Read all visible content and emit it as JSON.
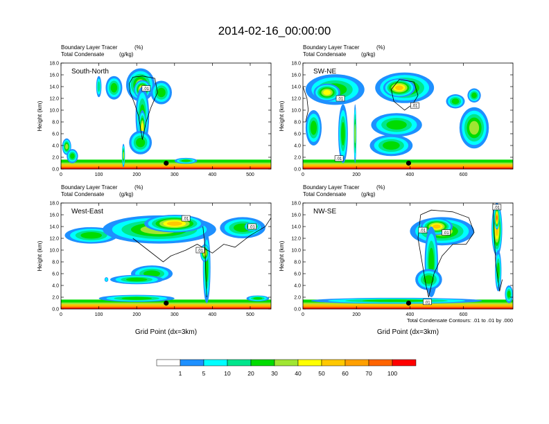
{
  "figure": {
    "title": "2014-02-16_00:00:00",
    "contour_note": "Total Condensate Contours: .01 to .01 by .000"
  },
  "chart_data": {
    "type": "heatmap",
    "panels": [
      {
        "id": "south-north",
        "label": "South-North",
        "subtitle_line1": "Boundary Layer Tracer",
        "subtitle_unit1": "(%)",
        "subtitle_line2": "Total Condensate",
        "subtitle_unit2": "(g/kg)",
        "ylabel": "Height (km)",
        "xlabel": "",
        "xlim": [
          0,
          555
        ],
        "ylim": [
          0,
          18
        ],
        "xticks": [
          0,
          100,
          200,
          300,
          400,
          500
        ],
        "yticks": [
          "0.0",
          "2.0",
          "4.0",
          "6.0",
          "8.0",
          "10.0",
          "12.0",
          "14.0",
          "16.0",
          "18.0"
        ],
        "marker": {
          "x": 278,
          "y": 1.0
        },
        "contour_labels": [
          {
            "x": 225,
            "y": 13.7,
            "text": ".01"
          }
        ],
        "blobs": [
          {
            "x": 140,
            "y": 13.8,
            "rx": 22,
            "ry": 2.0,
            "v": 20
          },
          {
            "x": 210,
            "y": 14.3,
            "rx": 38,
            "ry": 2.8,
            "v": 30
          },
          {
            "x": 215,
            "y": 13.5,
            "rx": 22,
            "ry": 1.6,
            "v": 50
          },
          {
            "x": 265,
            "y": 13.0,
            "rx": 28,
            "ry": 2.0,
            "v": 20
          },
          {
            "x": 100,
            "y": 14.0,
            "rx": 7,
            "ry": 1.8,
            "v": 10
          },
          {
            "x": 215,
            "y": 9.0,
            "rx": 18,
            "ry": 5.0,
            "v": 20
          },
          {
            "x": 215,
            "y": 7.0,
            "rx": 10,
            "ry": 3.0,
            "v": 40
          },
          {
            "x": 210,
            "y": 4.5,
            "rx": 30,
            "ry": 2.0,
            "v": 20
          },
          {
            "x": 15,
            "y": 3.8,
            "rx": 12,
            "ry": 1.4,
            "v": 30
          },
          {
            "x": 30,
            "y": 2.2,
            "rx": 15,
            "ry": 1.2,
            "v": 20
          },
          {
            "x": 165,
            "y": 2.3,
            "rx": 4,
            "ry": 2.0,
            "v": 30
          },
          {
            "x": 330,
            "y": 1.4,
            "rx": 30,
            "ry": 0.5,
            "v": 20
          }
        ],
        "contour_paths": [
          {
            "points": [
              [
                180,
                14.5
              ],
              [
                190,
                15.6
              ],
              [
                215,
                15.8
              ],
              [
                248,
                15.4
              ],
              [
                255,
                13
              ],
              [
                238,
                10.5
              ],
              [
                225,
                8
              ],
              [
                215,
                5
              ],
              [
                205,
                9
              ],
              [
                195,
                11
              ],
              [
                183,
                13
              ],
              [
                180,
                14.5
              ]
            ]
          }
        ]
      },
      {
        "id": "sw-ne",
        "label": "SW-NE",
        "subtitle_line1": "Boundary Layer Tracer",
        "subtitle_unit1": "(%)",
        "subtitle_line2": "Total Condensate",
        "subtitle_unit2": "(g/kg)",
        "ylabel": "Height (km)",
        "xlabel": "",
        "xlim": [
          0,
          785
        ],
        "ylim": [
          0,
          18
        ],
        "xticks": [
          0,
          200,
          400,
          600
        ],
        "yticks": [
          "0.0",
          "2.0",
          "4.0",
          "6.0",
          "8.0",
          "10.0",
          "12.0",
          "14.0",
          "16.0",
          "18.0"
        ],
        "marker": {
          "x": 395,
          "y": 1.0
        },
        "contour_labels": [
          {
            "x": 140,
            "y": 12.0,
            "text": ".01"
          },
          {
            "x": 418,
            "y": 10.8,
            "text": ".01"
          },
          {
            "x": 135,
            "y": 1.8,
            "text": ".01"
          }
        ],
        "blobs": [
          {
            "x": 120,
            "y": 13.5,
            "rx": 110,
            "ry": 2.6,
            "v": 20
          },
          {
            "x": 90,
            "y": 13.0,
            "rx": 50,
            "ry": 1.5,
            "v": 40
          },
          {
            "x": 380,
            "y": 13.8,
            "rx": 110,
            "ry": 2.6,
            "v": 30
          },
          {
            "x": 360,
            "y": 13.8,
            "rx": 60,
            "ry": 1.6,
            "v": 50
          },
          {
            "x": 570,
            "y": 11.5,
            "rx": 35,
            "ry": 1.2,
            "v": 20
          },
          {
            "x": 640,
            "y": 12.5,
            "rx": 25,
            "ry": 1.2,
            "v": 20
          },
          {
            "x": 350,
            "y": 7.5,
            "rx": 95,
            "ry": 2.0,
            "v": 20
          },
          {
            "x": 330,
            "y": 4.0,
            "rx": 80,
            "ry": 1.8,
            "v": 20
          },
          {
            "x": 640,
            "y": 7.0,
            "rx": 55,
            "ry": 3.5,
            "v": 30
          },
          {
            "x": 150,
            "y": 6.0,
            "rx": 18,
            "ry": 5.0,
            "v": 20
          },
          {
            "x": 195,
            "y": 6.0,
            "rx": 5,
            "ry": 5.0,
            "v": 30
          },
          {
            "x": 40,
            "y": 7.0,
            "rx": 30,
            "ry": 3.0,
            "v": 20
          }
        ],
        "contour_paths": [
          {
            "points": [
              [
                330,
                13.5
              ],
              [
                360,
                15.2
              ],
              [
                415,
                14.8
              ],
              [
                430,
                12.5
              ],
              [
                410,
                11
              ],
              [
                380,
                10
              ],
              [
                340,
                11.5
              ],
              [
                330,
                13.5
              ]
            ]
          },
          {
            "points": [
              [
                0,
                14
              ],
              [
                15,
                12
              ],
              [
                20,
                10
              ],
              [
                10,
                8
              ]
            ]
          }
        ]
      },
      {
        "id": "west-east",
        "label": "West-East",
        "subtitle_line1": "Boundary Layer Tracer",
        "subtitle_unit1": "(%)",
        "subtitle_line2": "Total Condensate",
        "subtitle_unit2": "(g/kg)",
        "ylabel": "Height (km)",
        "xlabel": "Grid Point (dx=3km)",
        "xlim": [
          0,
          555
        ],
        "ylim": [
          0,
          18
        ],
        "xticks": [
          0,
          100,
          200,
          300,
          400,
          500
        ],
        "yticks": [
          "0.0",
          "2.0",
          "4.0",
          "6.0",
          "8.0",
          "10.0",
          "12.0",
          "14.0",
          "16.0",
          "18.0"
        ],
        "marker": {
          "x": 278,
          "y": 1.0
        },
        "contour_labels": [
          {
            "x": 330,
            "y": 15.4,
            "text": ".01"
          },
          {
            "x": 505,
            "y": 14.0,
            "text": ".01"
          },
          {
            "x": 368,
            "y": 10.0,
            "text": ".01"
          }
        ],
        "blobs": [
          {
            "x": 80,
            "y": 12.5,
            "rx": 70,
            "ry": 1.4,
            "v": 20
          },
          {
            "x": 260,
            "y": 13.5,
            "rx": 150,
            "ry": 2.4,
            "v": 30
          },
          {
            "x": 300,
            "y": 14.5,
            "rx": 80,
            "ry": 1.5,
            "v": 50
          },
          {
            "x": 480,
            "y": 13.8,
            "rx": 60,
            "ry": 1.8,
            "v": 20
          },
          {
            "x": 505,
            "y": 14.0,
            "rx": 20,
            "ry": 0.8,
            "v": 50
          },
          {
            "x": 385,
            "y": 7.0,
            "rx": 10,
            "ry": 6.0,
            "v": 20
          },
          {
            "x": 380,
            "y": 9.5,
            "rx": 12,
            "ry": 1.5,
            "v": 40
          },
          {
            "x": 240,
            "y": 6.0,
            "rx": 55,
            "ry": 1.4,
            "v": 20
          },
          {
            "x": 200,
            "y": 5.0,
            "rx": 70,
            "ry": 0.8,
            "v": 20
          },
          {
            "x": 200,
            "y": 1.8,
            "rx": 100,
            "ry": 0.6,
            "v": 20
          },
          {
            "x": 120,
            "y": 5.0,
            "rx": 5,
            "ry": 0.4,
            "v": 5
          },
          {
            "x": 520,
            "y": 1.8,
            "rx": 30,
            "ry": 0.5,
            "v": 20
          }
        ],
        "contour_paths": [
          {
            "points": [
              [
                190,
                12
              ],
              [
                230,
                10
              ],
              [
                270,
                8
              ],
              [
                290,
                9
              ],
              [
                330,
                10
              ],
              [
                360,
                11
              ],
              [
                400,
                9.5
              ],
              [
                430,
                11
              ],
              [
                460,
                10.5
              ],
              [
                500,
                12.5
              ],
              [
                540,
                14
              ],
              [
                555,
                15.5
              ]
            ]
          },
          {
            "points": [
              [
                385,
                2
              ],
              [
                382,
                7
              ],
              [
                380,
                11
              ],
              [
                375,
                14
              ]
            ]
          }
        ]
      },
      {
        "id": "nw-se",
        "label": "NW-SE",
        "subtitle_line1": "Boundary Layer Tracer",
        "subtitle_unit1": "(%)",
        "subtitle_line2": "Total Condensate",
        "subtitle_unit2": "(g/kg)",
        "ylabel": "Height (km)",
        "xlabel": "Grid Point (dx=3km)",
        "xlim": [
          0,
          785
        ],
        "ylim": [
          0,
          18
        ],
        "xticks": [
          0,
          200,
          400,
          600
        ],
        "yticks": [
          "0.0",
          "2.0",
          "4.0",
          "6.0",
          "8.0",
          "10.0",
          "12.0",
          "14.0",
          "16.0",
          "18.0"
        ],
        "marker": {
          "x": 395,
          "y": 1.0
        },
        "contour_labels": [
          {
            "x": 448,
            "y": 13.4,
            "text": ".01"
          },
          {
            "x": 535,
            "y": 13.0,
            "text": ".01"
          },
          {
            "x": 725,
            "y": 17.3,
            "text": ".01"
          },
          {
            "x": 465,
            "y": 1.2,
            "text": ".01"
          }
        ],
        "blobs": [
          {
            "x": 520,
            "y": 13.2,
            "rx": 120,
            "ry": 2.4,
            "v": 30
          },
          {
            "x": 500,
            "y": 14.0,
            "rx": 60,
            "ry": 1.4,
            "v": 50
          },
          {
            "x": 480,
            "y": 8.0,
            "rx": 25,
            "ry": 6.0,
            "v": 20
          },
          {
            "x": 470,
            "y": 5.0,
            "rx": 50,
            "ry": 1.8,
            "v": 20
          },
          {
            "x": 725,
            "y": 13.5,
            "rx": 20,
            "ry": 4.5,
            "v": 50
          },
          {
            "x": 725,
            "y": 15.5,
            "rx": 10,
            "ry": 2.0,
            "v": 70
          },
          {
            "x": 730,
            "y": 6.5,
            "rx": 12,
            "ry": 3.5,
            "v": 20
          },
          {
            "x": 350,
            "y": 1.4,
            "rx": 320,
            "ry": 0.5,
            "v": 20
          },
          {
            "x": 770,
            "y": 2.5,
            "rx": 15,
            "ry": 1.5,
            "v": 20
          }
        ],
        "contour_paths": [
          {
            "points": [
              [
                440,
                16
              ],
              [
                480,
                16.8
              ],
              [
                560,
                16.5
              ],
              [
                620,
                15.5
              ],
              [
                640,
                13
              ],
              [
                610,
                11
              ],
              [
                560,
                11
              ],
              [
                520,
                9
              ],
              [
                490,
                6
              ],
              [
                470,
                2
              ],
              [
                460,
                4
              ],
              [
                445,
                8
              ],
              [
                430,
                12
              ],
              [
                440,
                16
              ]
            ]
          },
          {
            "points": [
              [
                710,
                18
              ],
              [
                715,
                13
              ],
              [
                720,
                8
              ],
              [
                735,
                3
              ],
              [
                745,
                5
              ]
            ]
          }
        ]
      }
    ],
    "colorbar": {
      "levels": [
        "1",
        "5",
        "10",
        "20",
        "30",
        "40",
        "50",
        "60",
        "70",
        "100"
      ],
      "colors": [
        "#ffffff",
        "#1e90ff",
        "#00ffff",
        "#00e68c",
        "#00dc00",
        "#a0e632",
        "#ffff00",
        "#ffc800",
        "#ffa000",
        "#ff6400",
        "#ff0000"
      ],
      "unit": "%"
    }
  }
}
